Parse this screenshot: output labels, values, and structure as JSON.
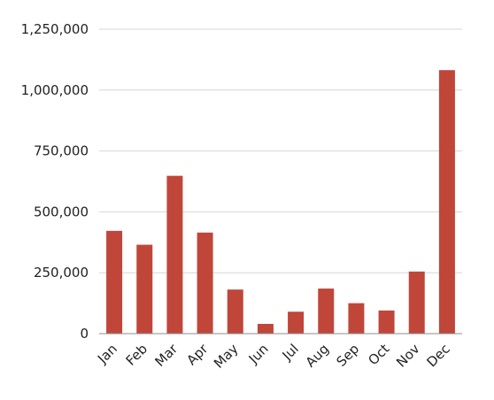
{
  "chart_data": {
    "type": "bar",
    "categories": [
      "Jan",
      "Feb",
      "Mar",
      "Apr",
      "May",
      "Jun",
      "Jul",
      "Aug",
      "Sep",
      "Oct",
      "Nov",
      "Dec"
    ],
    "values": [
      422000,
      365000,
      648000,
      415000,
      181000,
      40000,
      90000,
      185000,
      125000,
      95000,
      255000,
      1082000
    ],
    "y_ticks": [
      "0",
      "250,000",
      "500,000",
      "750,000",
      "1,000,000",
      "1,250,000"
    ],
    "ylim": [
      0,
      1250000
    ],
    "grid": true,
    "legend": "none",
    "colors": {
      "bar": "#c0463a",
      "grid": "#d6d6d6"
    }
  }
}
